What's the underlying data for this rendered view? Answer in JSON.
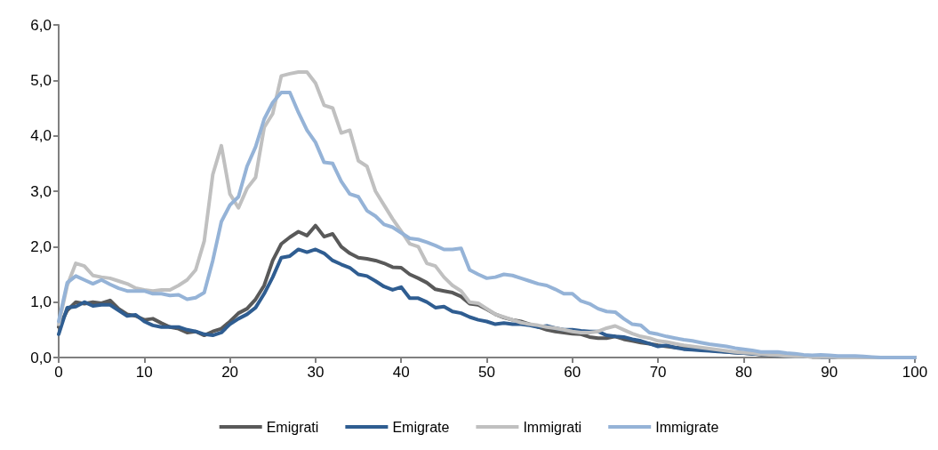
{
  "chart_data": {
    "type": "line",
    "x": [
      0,
      1,
      2,
      3,
      4,
      5,
      6,
      7,
      8,
      9,
      10,
      11,
      12,
      13,
      14,
      15,
      16,
      17,
      18,
      19,
      20,
      21,
      22,
      23,
      24,
      25,
      26,
      27,
      28,
      29,
      30,
      31,
      32,
      33,
      34,
      35,
      36,
      37,
      38,
      39,
      40,
      41,
      42,
      43,
      44,
      45,
      46,
      47,
      48,
      49,
      50,
      51,
      52,
      53,
      54,
      55,
      56,
      57,
      58,
      59,
      60,
      61,
      62,
      63,
      64,
      65,
      66,
      67,
      68,
      69,
      70,
      71,
      72,
      73,
      74,
      75,
      76,
      77,
      78,
      79,
      80,
      81,
      82,
      83,
      84,
      85,
      86,
      87,
      88,
      89,
      90,
      91,
      92,
      93,
      94,
      95,
      96,
      97,
      98,
      99,
      100
    ],
    "xlim": [
      0,
      100
    ],
    "xticks": [
      0,
      10,
      20,
      30,
      40,
      50,
      60,
      70,
      80,
      90,
      100
    ],
    "ylim": [
      0,
      6
    ],
    "yticks": [
      {
        "value": 0,
        "label": "0,0"
      },
      {
        "value": 1,
        "label": "1,0"
      },
      {
        "value": 2,
        "label": "2,0"
      },
      {
        "value": 3,
        "label": "3,0"
      },
      {
        "value": 4,
        "label": "4,0"
      },
      {
        "value": 5,
        "label": "5,0"
      },
      {
        "value": 6,
        "label": "6,0"
      }
    ],
    "grid": false,
    "legend": "bottom",
    "marker": "none",
    "line_style": "solid",
    "series": [
      {
        "name": "Emigrati",
        "color": "#595959",
        "values": [
          0.55,
          0.85,
          1.0,
          0.97,
          1.0,
          0.98,
          1.03,
          0.88,
          0.78,
          0.75,
          0.68,
          0.7,
          0.62,
          0.55,
          0.52,
          0.45,
          0.47,
          0.4,
          0.47,
          0.52,
          0.65,
          0.8,
          0.88,
          1.05,
          1.3,
          1.75,
          2.05,
          2.17,
          2.27,
          2.2,
          2.38,
          2.18,
          2.23,
          2.0,
          1.88,
          1.8,
          1.78,
          1.75,
          1.7,
          1.63,
          1.62,
          1.5,
          1.43,
          1.35,
          1.23,
          1.2,
          1.17,
          1.1,
          0.97,
          0.95,
          0.87,
          0.78,
          0.72,
          0.68,
          0.65,
          0.6,
          0.55,
          0.5,
          0.47,
          0.45,
          0.43,
          0.42,
          0.37,
          0.35,
          0.35,
          0.38,
          0.33,
          0.3,
          0.27,
          0.25,
          0.22,
          0.2,
          0.18,
          0.17,
          0.15,
          0.15,
          0.13,
          0.12,
          0.1,
          0.09,
          0.08,
          0.07,
          0.05,
          0.04,
          0.03,
          0.03,
          0.02,
          0.02,
          0.01,
          0.01,
          0.01,
          0,
          0,
          0,
          0,
          0,
          0,
          0,
          0,
          0,
          0
        ]
      },
      {
        "name": "Emigrate",
        "color": "#2f5d91",
        "values": [
          0.42,
          0.9,
          0.92,
          1.0,
          0.93,
          0.95,
          0.95,
          0.85,
          0.75,
          0.77,
          0.65,
          0.58,
          0.55,
          0.55,
          0.55,
          0.5,
          0.47,
          0.42,
          0.4,
          0.45,
          0.6,
          0.7,
          0.78,
          0.9,
          1.15,
          1.45,
          1.8,
          1.83,
          1.95,
          1.9,
          1.95,
          1.88,
          1.75,
          1.68,
          1.62,
          1.5,
          1.47,
          1.38,
          1.28,
          1.22,
          1.27,
          1.07,
          1.07,
          1.0,
          0.9,
          0.92,
          0.83,
          0.8,
          0.73,
          0.68,
          0.65,
          0.6,
          0.62,
          0.6,
          0.6,
          0.58,
          0.55,
          0.57,
          0.53,
          0.5,
          0.5,
          0.48,
          0.47,
          0.47,
          0.4,
          0.38,
          0.37,
          0.33,
          0.3,
          0.25,
          0.2,
          0.22,
          0.18,
          0.15,
          0.14,
          0.13,
          0.12,
          0.11,
          0.1,
          0.09,
          0.08,
          0.07,
          0.06,
          0.05,
          0.04,
          0.03,
          0.03,
          0.02,
          0.02,
          0.01,
          0.01,
          0,
          0,
          0,
          0,
          0,
          0,
          0,
          0,
          0,
          0
        ]
      },
      {
        "name": "Immigrati",
        "color": "#c0c0c0",
        "values": [
          0.6,
          1.3,
          1.7,
          1.65,
          1.48,
          1.45,
          1.43,
          1.38,
          1.33,
          1.25,
          1.22,
          1.2,
          1.22,
          1.22,
          1.3,
          1.4,
          1.58,
          2.1,
          3.3,
          3.82,
          2.95,
          2.7,
          3.05,
          3.25,
          4.15,
          4.4,
          5.08,
          5.12,
          5.15,
          5.15,
          4.95,
          4.55,
          4.5,
          4.05,
          4.1,
          3.55,
          3.45,
          3.0,
          2.75,
          2.5,
          2.28,
          2.05,
          2.0,
          1.7,
          1.65,
          1.45,
          1.3,
          1.2,
          1.0,
          0.98,
          0.88,
          0.78,
          0.73,
          0.68,
          0.63,
          0.6,
          0.58,
          0.55,
          0.53,
          0.5,
          0.47,
          0.45,
          0.45,
          0.47,
          0.53,
          0.57,
          0.5,
          0.43,
          0.38,
          0.35,
          0.3,
          0.28,
          0.25,
          0.22,
          0.2,
          0.18,
          0.16,
          0.14,
          0.12,
          0.1,
          0.09,
          0.08,
          0.06,
          0.05,
          0.04,
          0.03,
          0.02,
          0.02,
          0.01,
          0.01,
          0.01,
          0,
          0,
          0,
          0,
          0,
          0,
          0,
          0,
          0,
          0
        ]
      },
      {
        "name": "Immigrate",
        "color": "#95b3d7",
        "values": [
          0.65,
          1.35,
          1.47,
          1.4,
          1.33,
          1.4,
          1.32,
          1.25,
          1.2,
          1.2,
          1.2,
          1.15,
          1.15,
          1.12,
          1.13,
          1.05,
          1.08,
          1.17,
          1.75,
          2.45,
          2.75,
          2.9,
          3.45,
          3.8,
          4.3,
          4.6,
          4.78,
          4.78,
          4.42,
          4.1,
          3.88,
          3.52,
          3.5,
          3.18,
          2.95,
          2.9,
          2.65,
          2.55,
          2.4,
          2.35,
          2.25,
          2.15,
          2.13,
          2.08,
          2.02,
          1.95,
          1.95,
          1.97,
          1.58,
          1.5,
          1.43,
          1.45,
          1.5,
          1.48,
          1.43,
          1.38,
          1.33,
          1.3,
          1.23,
          1.15,
          1.15,
          1.02,
          0.97,
          0.88,
          0.83,
          0.82,
          0.7,
          0.6,
          0.58,
          0.45,
          0.42,
          0.38,
          0.35,
          0.32,
          0.3,
          0.27,
          0.24,
          0.22,
          0.2,
          0.17,
          0.15,
          0.13,
          0.1,
          0.1,
          0.1,
          0.08,
          0.07,
          0.05,
          0.04,
          0.05,
          0.04,
          0.03,
          0.03,
          0.03,
          0.02,
          0.01,
          0,
          0,
          0,
          0,
          0
        ]
      }
    ]
  }
}
